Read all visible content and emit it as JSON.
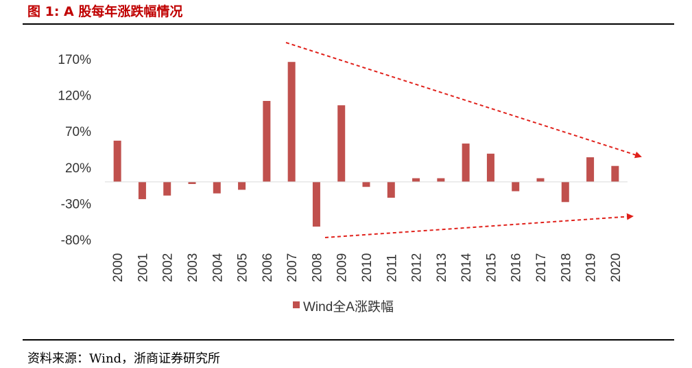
{
  "figure": {
    "title": "图  1: A 股每年涨跌幅情况",
    "source": "资料来源：Wind，浙商证券研究所"
  },
  "colors": {
    "bar": "#c0504d",
    "trend_arrow": "#e0201a",
    "title": "#c00000"
  },
  "chart_data": {
    "type": "bar",
    "categories": [
      "2000",
      "2001",
      "2002",
      "2003",
      "2004",
      "2005",
      "2006",
      "2007",
      "2008",
      "2009",
      "2010",
      "2011",
      "2012",
      "2013",
      "2014",
      "2015",
      "2016",
      "2017",
      "2018",
      "2019",
      "2020"
    ],
    "series": [
      {
        "name": "Wind全A涨跌幅",
        "values": [
          57,
          -24,
          -19,
          -3,
          -16,
          -11,
          112,
          166,
          -62,
          106,
          -7,
          -22,
          5,
          5,
          53,
          39,
          -13,
          5,
          -28,
          34,
          22
        ]
      }
    ],
    "yticks": [
      "170%",
      "120%",
      "70%",
      "20%",
      "-30%",
      "-80%"
    ],
    "ylim": [
      -80,
      170
    ],
    "legend_position": "bottom",
    "grid": false,
    "annotations": [
      {
        "type": "arrow",
        "from": "2007",
        "to": "2020",
        "trend": "down",
        "style": "dashed"
      },
      {
        "type": "arrow",
        "from": "2008",
        "to": "2020",
        "trend": "up",
        "style": "dashed"
      }
    ]
  }
}
